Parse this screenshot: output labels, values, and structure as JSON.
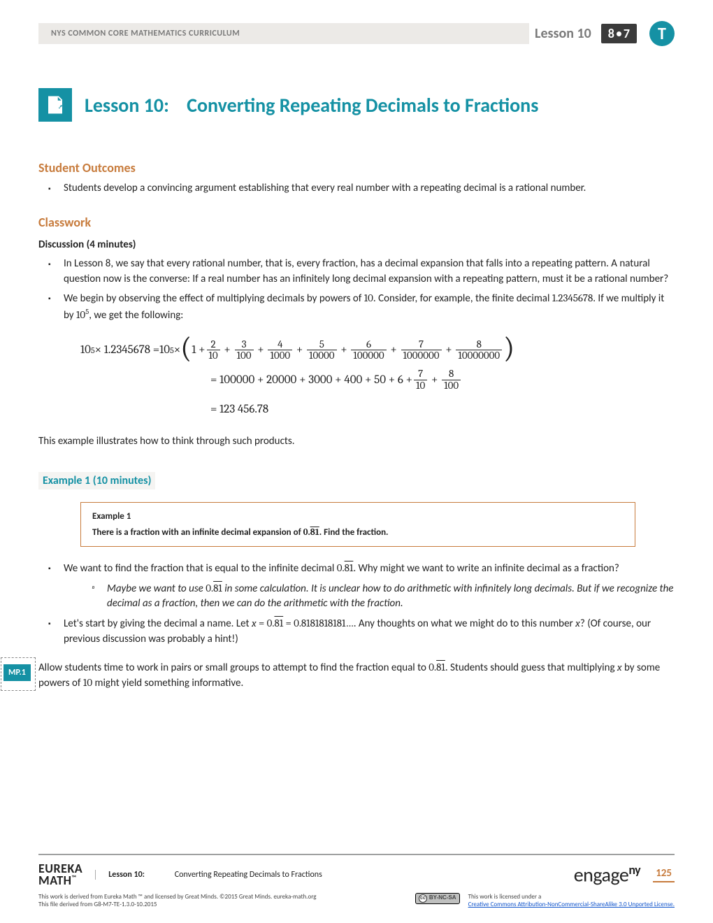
{
  "header": {
    "curriculum": "NYS COMMON CORE MATHEMATICS CURRICULUM",
    "lesson_label": "Lesson 10",
    "grade": "8",
    "module": "7",
    "edition": "T"
  },
  "title": {
    "prefix": "Lesson 10:",
    "text": "Converting Repeating Decimals to Fractions"
  },
  "outcomes": {
    "heading": "Student Outcomes",
    "items": [
      "Students develop a convincing argument establishing that every real number with a repeating decimal is a rational number."
    ]
  },
  "classwork": {
    "heading": "Classwork",
    "discussion_heading": "Discussion  (4 minutes)",
    "bullet1": "In Lesson 8, we say that every rational number, that is, every fraction, has a decimal expansion that falls into a repeating pattern.  A natural question now is the converse:  If a real number has an infinitely long decimal expansion with a repeating pattern, must it be a rational number?",
    "bullet2a": "We begin by observing the effect of multiplying decimals by powers of ",
    "bullet2_ten": "10",
    "bullet2b": ".  Consider, for example, the finite decimal ",
    "bullet2_dec": "1.2345678",
    "bullet2c": ".  If we multiply it by ",
    "bullet2_pow": "10",
    "bullet2_exp": "5",
    "bullet2d": ", we get the following:"
  },
  "equation": {
    "lhs_base": "10",
    "lhs_exp": "5",
    "lhs_times": " × 1.2345678 = ",
    "rhs_base": "10",
    "rhs_exp": "5",
    "rhs_times": " × ",
    "one_plus": "1 + ",
    "fracs": [
      {
        "n": "2",
        "d": "10"
      },
      {
        "n": "3",
        "d": "100"
      },
      {
        "n": "4",
        "d": "1000"
      },
      {
        "n": "5",
        "d": "10000"
      },
      {
        "n": "6",
        "d": "100000"
      },
      {
        "n": "7",
        "d": "1000000"
      },
      {
        "n": "8",
        "d": "10000000"
      }
    ],
    "line2a": "= 100000 + 20000 + 3000 + 400 + 50 + 6 + ",
    "line2_fracs": [
      {
        "n": "7",
        "d": "10"
      },
      {
        "n": "8",
        "d": "100"
      }
    ],
    "line3": "= 123 456.78"
  },
  "after_eq": "This example illustrates how to think through such products.",
  "example1": {
    "heading": "Example 1  (10 minutes)",
    "box_title": "Example 1",
    "box_text_a": "There is a fraction with an infinite decimal expansion of ",
    "box_num_int": "0.",
    "box_num_rep": "81",
    "box_text_b": ".  Find the fraction.",
    "b1a": "We want to find the fraction that is equal to the infinite decimal ",
    "b1_int": "0.",
    "b1_rep": "81",
    "b1b": ".  Why might we want to write an infinite decimal as a fraction?",
    "sub1a": "Maybe we want to use ",
    "sub1_int": "0.",
    "sub1_rep": "81",
    "sub1b": " in some calculation.  It is unclear how to do arithmetic with infinitely long decimals.  But if we recognize the decimal as a fraction, then we can do the arithmetic with the fraction.",
    "b2a": "Let's start by giving the decimal a name.  Let ",
    "b2_x1": "x",
    "b2_eq1": " = ",
    "b2_int": "0.",
    "b2_rep": "81",
    "b2_eq2": " = 0.8181818181…",
    "b2b": ".  Any thoughts on what we might do to this number ",
    "b2_x2": "x",
    "b2c": "?  (Of course, our previous discussion was probably a hint!)"
  },
  "mp": {
    "label": "MP.1",
    "text_a": "Allow students time to work in pairs or small groups to attempt to find the fraction equal to ",
    "text_int": "0.",
    "text_rep": "81",
    "text_b": ".  Students should guess that multiplying ",
    "text_x": "x",
    "text_c": " by some powers of ",
    "text_ten": "10",
    "text_d": " might yield something informative."
  },
  "footer": {
    "brand": "EUREKA",
    "brand2": "MATH",
    "tm": "™",
    "lesson_label": "Lesson 10:",
    "lesson_title": "Converting Repeating Decimals to Fractions",
    "engage_a": "engage",
    "engage_b": "ny",
    "page": "125",
    "attrib1": "This work is derived from Eureka Math ™ and licensed by Great Minds. ©2015 Great Minds. eureka-math.org",
    "attrib2": "This file derived from G8-M7-TE-1.3.0-10.2015",
    "cc_label": "BY-NC-SA",
    "license_a": "This work is licensed under a",
    "license_link": "Creative Commons Attribution-NonCommercial-ShareAlike 3.0 Unported License."
  }
}
